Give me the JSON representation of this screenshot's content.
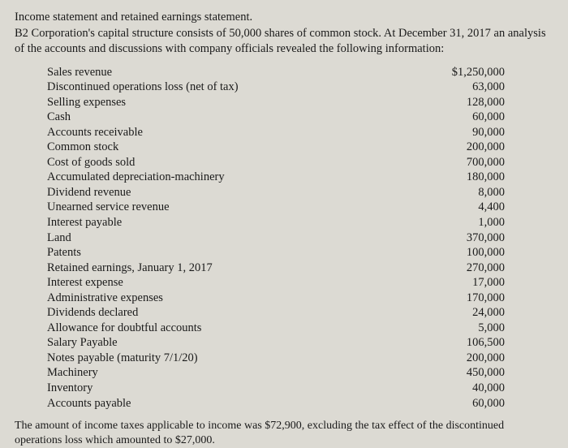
{
  "header": {
    "line1": "Income statement and retained earnings statement.",
    "line2": "B2 Corporation's capital structure consists of 50,000 shares of common stock. At December 31, 2017 an analysis of the accounts and discussions with company officials revealed the following information:"
  },
  "rows": [
    {
      "label": "Sales revenue",
      "value": "$1,250,000"
    },
    {
      "label": "Discontinued operations loss (net of tax)",
      "value": "63,000"
    },
    {
      "label": "Selling expenses",
      "value": "128,000"
    },
    {
      "label": "Cash",
      "value": "60,000"
    },
    {
      "label": "Accounts receivable",
      "value": "90,000"
    },
    {
      "label": "Common stock",
      "value": "200,000"
    },
    {
      "label": "Cost of goods sold",
      "value": "700,000"
    },
    {
      "label": "Accumulated depreciation-machinery",
      "value": "180,000"
    },
    {
      "label": "Dividend revenue",
      "value": "8,000"
    },
    {
      "label": "Unearned service revenue",
      "value": "4,400"
    },
    {
      "label": "Interest payable",
      "value": "1,000"
    },
    {
      "label": "Land",
      "value": "370,000"
    },
    {
      "label": "Patents",
      "value": "100,000"
    },
    {
      "label": "Retained earnings, January 1, 2017",
      "value": "270,000"
    },
    {
      "label": "Interest expense",
      "value": "17,000"
    },
    {
      "label": "Administrative expenses",
      "value": "170,000"
    },
    {
      "label": "Dividends declared",
      "value": "24,000"
    },
    {
      "label": "Allowance for doubtful accounts",
      "value": "5,000"
    },
    {
      "label": "Salary Payable",
      "value": "106,500"
    },
    {
      "label": "Notes payable (maturity 7/1/20)",
      "value": "200,000"
    },
    {
      "label": "Machinery",
      "value": "450,000"
    },
    {
      "label": "Inventory",
      "value": "40,000"
    },
    {
      "label": "Accounts payable",
      "value": "60,000"
    }
  ],
  "footer": "The amount of income taxes applicable to income was $72,900, excluding the tax effect of the discontinued operations loss which amounted to $27,000."
}
